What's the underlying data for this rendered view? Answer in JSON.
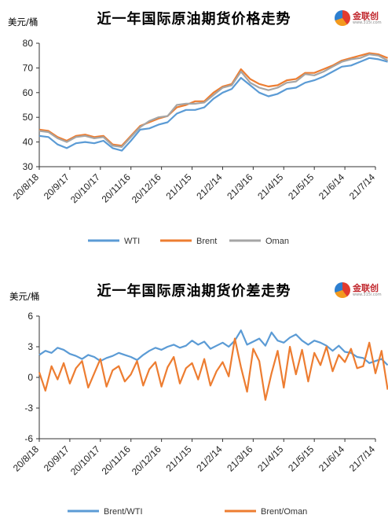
{
  "chart_data": [
    {
      "type": "line",
      "title": "近一年国际原油期货价格走势",
      "ylabel": "美元/桶",
      "ylim": [
        30,
        80
      ],
      "yticks": [
        "30",
        "40",
        "50",
        "60",
        "70",
        "80"
      ],
      "xticks": [
        "20/8/18",
        "20/9/17",
        "20/10/17",
        "20/11/16",
        "20/12/16",
        "21/1/15",
        "21/2/14",
        "21/3/16",
        "21/4/15",
        "21/5/15",
        "21/6/14",
        "21/7/14"
      ],
      "grid": false,
      "legend": "bottom",
      "x_points": [
        0,
        0.3,
        0.6,
        0.9,
        1.2,
        1.5,
        1.8,
        2.1,
        2.4,
        2.7,
        3.0,
        3.3,
        3.6,
        3.9,
        4.2,
        4.5,
        4.8,
        5.1,
        5.4,
        5.7,
        6.0,
        6.3,
        6.6,
        6.9,
        7.2,
        7.5,
        7.8,
        8.1,
        8.4,
        8.7,
        9.0,
        9.3,
        9.6,
        9.9,
        10.2,
        10.5,
        10.8,
        11.1,
        11.4
      ],
      "series": [
        {
          "name": "WTI",
          "color": "#5b9bd5",
          "values": [
            42.5,
            42.0,
            39.0,
            37.5,
            39.5,
            40.0,
            39.5,
            40.5,
            37.5,
            36.5,
            40.5,
            45.0,
            45.5,
            47.0,
            48.0,
            51.5,
            53.0,
            53.0,
            54.0,
            57.5,
            60.0,
            61.5,
            66.0,
            63.0,
            60.0,
            58.5,
            59.5,
            61.5,
            62.0,
            64.0,
            65.0,
            66.5,
            68.5,
            70.5,
            71.0,
            72.5,
            74.0,
            73.5,
            72.5
          ]
        },
        {
          "name": "Brent",
          "color": "#ed7d31",
          "values": [
            45.0,
            44.5,
            42.0,
            40.5,
            42.5,
            43.0,
            42.0,
            42.5,
            39.0,
            38.5,
            42.5,
            46.5,
            48.0,
            49.5,
            50.5,
            54.0,
            55.0,
            56.5,
            56.5,
            60.0,
            62.5,
            63.5,
            69.5,
            65.5,
            63.5,
            62.5,
            63.0,
            65.0,
            65.5,
            68.0,
            68.0,
            69.5,
            71.0,
            73.0,
            74.0,
            75.0,
            76.0,
            75.5,
            74.0
          ]
        },
        {
          "name": "Oman",
          "color": "#a5a5a5",
          "values": [
            44.5,
            44.0,
            41.5,
            40.0,
            42.0,
            42.5,
            41.5,
            42.0,
            38.5,
            38.0,
            42.0,
            46.0,
            48.5,
            50.0,
            50.5,
            55.0,
            55.5,
            55.5,
            56.0,
            59.0,
            62.0,
            63.0,
            68.5,
            64.0,
            62.0,
            61.0,
            62.0,
            64.0,
            64.5,
            67.5,
            67.0,
            68.5,
            70.5,
            72.5,
            73.5,
            74.0,
            75.5,
            75.0,
            73.0
          ]
        }
      ]
    },
    {
      "type": "line",
      "title": "近一年国际原油期货价差走势",
      "ylabel": "美元/桶",
      "ylim": [
        -6,
        6
      ],
      "yticks": [
        "-6",
        "-3",
        "0",
        "3",
        "6"
      ],
      "xticks": [
        "20/8/18",
        "20/9/17",
        "20/10/17",
        "20/11/16",
        "20/12/16",
        "21/1/15",
        "21/2/14",
        "21/3/16",
        "21/4/15",
        "21/5/15",
        "21/6/14",
        "21/7/14"
      ],
      "grid": false,
      "legend": "bottom",
      "x_points": [
        0,
        0.2,
        0.4,
        0.6,
        0.8,
        1.0,
        1.2,
        1.4,
        1.6,
        1.8,
        2.0,
        2.2,
        2.4,
        2.6,
        2.8,
        3.0,
        3.2,
        3.4,
        3.6,
        3.8,
        4.0,
        4.2,
        4.4,
        4.6,
        4.8,
        5.0,
        5.2,
        5.4,
        5.6,
        5.8,
        6.0,
        6.2,
        6.4,
        6.6,
        6.8,
        7.0,
        7.2,
        7.4,
        7.6,
        7.8,
        8.0,
        8.2,
        8.4,
        8.6,
        8.8,
        9.0,
        9.2,
        9.4,
        9.6,
        9.8,
        10.0,
        10.2,
        10.4,
        10.6,
        10.8,
        11.0,
        11.2,
        11.4
      ],
      "series": [
        {
          "name": "Brent/WTI",
          "color": "#5b9bd5",
          "values": [
            2.2,
            2.6,
            2.4,
            2.9,
            2.7,
            2.3,
            2.1,
            1.8,
            2.2,
            2.0,
            1.6,
            1.9,
            2.1,
            2.4,
            2.2,
            2.0,
            1.7,
            2.2,
            2.6,
            2.9,
            2.7,
            3.0,
            3.2,
            2.9,
            3.1,
            3.6,
            3.2,
            3.5,
            2.8,
            3.1,
            3.4,
            3.0,
            3.6,
            4.6,
            3.2,
            3.5,
            3.8,
            3.1,
            4.4,
            3.6,
            3.4,
            3.9,
            4.2,
            3.6,
            3.2,
            3.6,
            3.4,
            3.1,
            2.6,
            3.1,
            2.5,
            2.4,
            2.0,
            1.9,
            1.4,
            1.6,
            1.8,
            1.2
          ]
        },
        {
          "name": "Brent/Oman",
          "color": "#ed7d31",
          "values": [
            0.5,
            -1.3,
            1.1,
            -0.2,
            1.4,
            -0.6,
            0.9,
            1.6,
            -1.0,
            0.4,
            1.8,
            -0.9,
            0.7,
            1.1,
            -0.4,
            0.3,
            1.6,
            -0.8,
            0.8,
            1.5,
            -0.9,
            1.0,
            2.0,
            -0.6,
            0.9,
            1.4,
            -0.2,
            1.8,
            -0.8,
            0.6,
            1.5,
            0.1,
            3.8,
            1.0,
            -1.4,
            2.8,
            1.6,
            -2.2,
            0.4,
            2.6,
            -1.0,
            3.0,
            0.3,
            2.7,
            -0.4,
            2.4,
            1.2,
            3.0,
            0.6,
            2.2,
            1.5,
            2.8,
            0.9,
            1.1,
            3.4,
            0.4,
            2.6,
            -1.2
          ]
        }
      ]
    }
  ]
}
